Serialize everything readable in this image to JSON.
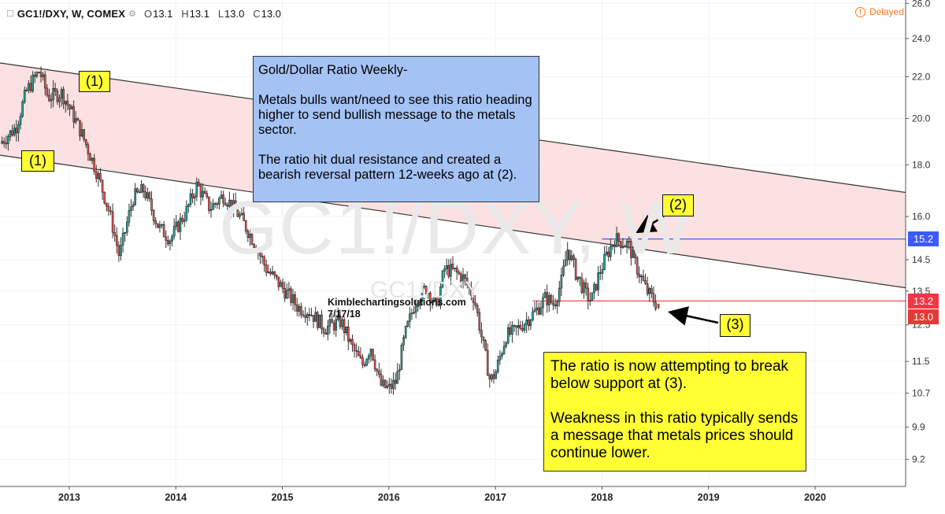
{
  "header": {
    "symbol": "GC1!/DXY, W, COMEX",
    "open_label": "O",
    "open": "13.1",
    "high_label": "H",
    "high": "13.1",
    "low_label": "L",
    "low": "13.0",
    "close_label": "C",
    "close": "13.0",
    "delayed_label": "Delayed",
    "delayed_icon": "clock-icon"
  },
  "watermark": {
    "big": "GC1!/DXY, W",
    "small": "GC1!/DXY"
  },
  "signature": {
    "site": "Kimblechartingsolutions.com",
    "date": "7/17/18"
  },
  "annotations": {
    "blue_note": [
      "Gold/Dollar Ratio Weekly-",
      "Metals bulls want/need to see this ratio heading higher to send bullish message to the metals sector.",
      "The ratio hit dual resistance and created a bearish reversal pattern 12-weeks ago at (2)."
    ],
    "yellow_note": [
      "The ratio is now attempting to break below support at (3).",
      "Weakness in this ratio typically sends a message that metals prices should continue lower."
    ],
    "tag_1_upper": "(1)",
    "tag_1_lower": "(1)",
    "tag_2": "(2)",
    "tag_3": "(3)"
  },
  "price_badges": {
    "resistance": {
      "label": "15.2",
      "color": "#3d5afe"
    },
    "support": {
      "label": "13.2",
      "color": "#f23645"
    },
    "last": {
      "label": "13.0",
      "color": "#e53935"
    }
  },
  "colors": {
    "channel_fill": "#fadcdc",
    "up_candle": "#26a69a",
    "down_candle": "#ef5350",
    "wick": "#333333",
    "resistance_line": "#3d5afe",
    "support_line": "#f23645"
  },
  "chart_data": {
    "type": "candlestick",
    "title": "",
    "xlabel": "",
    "ylabel": "",
    "x_ticks": [
      "2013",
      "2014",
      "2015",
      "2016",
      "2017",
      "2018",
      "2019",
      "2020"
    ],
    "y_ticks": [
      "26.0",
      "24.0",
      "22.0",
      "20.0",
      "18.0",
      "16.0",
      "14.5",
      "13.5",
      "12.5",
      "11.5",
      "10.7",
      "9.9",
      "9.2"
    ],
    "y_scale": "log",
    "xlim": [
      2012.35,
      2020.85
    ],
    "ylim": [
      8.65,
      26.2
    ],
    "grid": true,
    "price_path": [
      [
        2012.35,
        18.9
      ],
      [
        2012.5,
        19.6
      ],
      [
        2012.6,
        21.3
      ],
      [
        2012.72,
        22.3
      ],
      [
        2012.8,
        21.0
      ],
      [
        2012.93,
        21.2
      ],
      [
        2013.1,
        19.5
      ],
      [
        2013.25,
        17.8
      ],
      [
        2013.38,
        16.1
      ],
      [
        2013.47,
        14.6
      ],
      [
        2013.6,
        16.7
      ],
      [
        2013.7,
        17.0
      ],
      [
        2013.84,
        15.6
      ],
      [
        2013.95,
        15.2
      ],
      [
        2014.1,
        16.2
      ],
      [
        2014.2,
        17.2
      ],
      [
        2014.32,
        16.3
      ],
      [
        2014.45,
        16.8
      ],
      [
        2014.6,
        16.0
      ],
      [
        2014.72,
        15.2
      ],
      [
        2014.85,
        14.2
      ],
      [
        2015.0,
        13.6
      ],
      [
        2015.15,
        13.0
      ],
      [
        2015.25,
        12.9
      ],
      [
        2015.4,
        12.4
      ],
      [
        2015.55,
        12.6
      ],
      [
        2015.65,
        11.9
      ],
      [
        2015.75,
        11.4
      ],
      [
        2015.83,
        11.9
      ],
      [
        2015.92,
        10.9
      ],
      [
        2016.0,
        10.8
      ],
      [
        2016.07,
        11.0
      ],
      [
        2016.15,
        12.2
      ],
      [
        2016.25,
        13.2
      ],
      [
        2016.35,
        13.6
      ],
      [
        2016.45,
        13.0
      ],
      [
        2016.52,
        14.2
      ],
      [
        2016.62,
        14.1
      ],
      [
        2016.7,
        13.9
      ],
      [
        2016.8,
        13.3
      ],
      [
        2016.88,
        12.0
      ],
      [
        2016.95,
        11.0
      ],
      [
        2017.0,
        11.2
      ],
      [
        2017.1,
        12.2
      ],
      [
        2017.18,
        12.3
      ],
      [
        2017.28,
        12.6
      ],
      [
        2017.38,
        12.9
      ],
      [
        2017.47,
        13.3
      ],
      [
        2017.55,
        13.1
      ],
      [
        2017.62,
        13.8
      ],
      [
        2017.68,
        14.9
      ],
      [
        2017.75,
        14.1
      ],
      [
        2017.85,
        13.4
      ],
      [
        2017.9,
        13.2
      ],
      [
        2017.97,
        14.0
      ],
      [
        2018.05,
        14.7
      ],
      [
        2018.12,
        15.2
      ],
      [
        2018.25,
        15.0
      ],
      [
        2018.32,
        14.3
      ],
      [
        2018.42,
        13.5
      ],
      [
        2018.49,
        13.2
      ],
      [
        2018.53,
        13.0
      ]
    ],
    "last_candle": {
      "open": 13.1,
      "high": 13.1,
      "low": 13.0,
      "close": 13.0
    },
    "channel": {
      "upper_line": {
        "start": [
          2012.35,
          22.7
        ],
        "end": [
          2020.85,
          16.9
        ]
      },
      "lower_line": {
        "start": [
          2012.35,
          18.4
        ],
        "end": [
          2020.85,
          13.6
        ]
      }
    },
    "horizontal_lines": [
      {
        "value": 15.2,
        "from_x": 2018.0,
        "label": "15.2"
      },
      {
        "value": 13.2,
        "from_x": 2017.35,
        "label": "13.2"
      }
    ],
    "callouts": [
      {
        "label": "(1)",
        "target": [
          2012.55,
          22.5
        ]
      },
      {
        "label": "(1)",
        "target": [
          2012.35,
          18.4
        ]
      },
      {
        "label": "(2)",
        "target": [
          2018.2,
          15.2
        ]
      },
      {
        "label": "(3)",
        "target": [
          2018.55,
          12.9
        ]
      }
    ]
  }
}
